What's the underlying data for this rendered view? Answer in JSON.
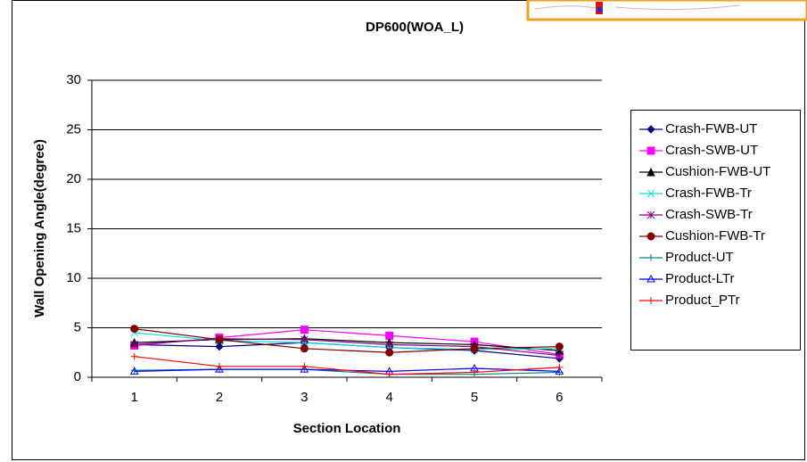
{
  "chart_data": {
    "type": "line",
    "title": "DP600(WOA_L)",
    "x_label": "Section Location",
    "y_label": "Wall Opening Angle(degree)",
    "categories": [
      "1",
      "2",
      "3",
      "4",
      "5",
      "6"
    ],
    "ylim": [
      0,
      30
    ],
    "yticks": [
      0,
      5,
      10,
      15,
      20,
      25,
      30
    ],
    "grid": true,
    "legend": "right",
    "series": [
      {
        "name": "Crash-FWB-UT",
        "color": "#000080",
        "marker": "diamond",
        "values": [
          3.3,
          3.1,
          3.5,
          3.0,
          2.7,
          1.9
        ]
      },
      {
        "name": "Crash-SWB-UT",
        "color": "#ff00ff",
        "marker": "square",
        "values": [
          3.2,
          4.0,
          4.8,
          4.2,
          3.6,
          2.3
        ]
      },
      {
        "name": "Cushion-FWB-UT",
        "color": "#000000",
        "marker": "triangle",
        "values": [
          3.5,
          3.8,
          3.9,
          3.5,
          3.3,
          2.7
        ]
      },
      {
        "name": "Crash-FWB-Tr",
        "color": "#00e0e0",
        "marker": "x",
        "values": [
          4.5,
          3.7,
          3.5,
          3.0,
          2.8,
          2.9
        ]
      },
      {
        "name": "Crash-SWB-Tr",
        "color": "#800080",
        "marker": "star",
        "values": [
          3.3,
          3.9,
          3.8,
          3.3,
          3.1,
          2.2
        ]
      },
      {
        "name": "Cushion-FWB-Tr",
        "color": "#800000",
        "marker": "circle",
        "values": [
          4.9,
          3.8,
          2.9,
          2.5,
          2.9,
          3.1
        ]
      },
      {
        "name": "Product-UT",
        "color": "#008080",
        "marker": "plus",
        "values": [
          0.7,
          0.8,
          0.8,
          0.3,
          0.3,
          0.5
        ]
      },
      {
        "name": "Product-LTr",
        "color": "#0000ff",
        "marker": "open-triangle",
        "values": [
          0.6,
          0.8,
          0.8,
          0.6,
          0.9,
          0.6
        ]
      },
      {
        "name": "Product_PTr",
        "color": "#ff0000",
        "marker": "plus",
        "values": [
          2.1,
          1.1,
          1.1,
          0.3,
          0.5,
          1.0
        ]
      }
    ]
  }
}
